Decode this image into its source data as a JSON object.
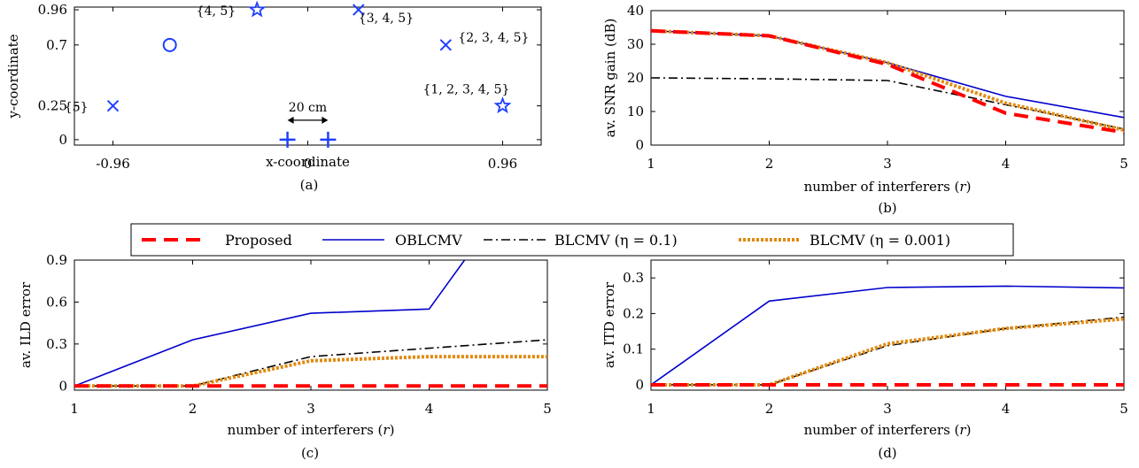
{
  "colors": {
    "proposed": "#ff0000",
    "oblcmv": "#0000cc",
    "blcmv_01": "#000000",
    "blcmv_0001": "#e08a10",
    "marker": "#1f3fff"
  },
  "legend": {
    "items": [
      {
        "key": "proposed",
        "label": "Proposed"
      },
      {
        "key": "oblcmv",
        "label": "OBLCMV"
      },
      {
        "key": "blcmv_01",
        "label": "BLCMV (η = 0.1)"
      },
      {
        "key": "blcmv_0001",
        "label": "BLCMV (η = 0.001)"
      }
    ]
  },
  "chart_data": [
    {
      "id": "a",
      "type": "scatter",
      "caption": "(a)",
      "xlabel": "x-coordinate",
      "ylabel": "y-coordinate",
      "xlim": [
        -1.15,
        1.15
      ],
      "ylim": [
        -0.04,
        0.98
      ],
      "xticks": [
        {
          "v": -0.96,
          "label": "-0.96"
        },
        {
          "v": 0,
          "label": "0"
        },
        {
          "v": 0.96,
          "label": "0.96"
        }
      ],
      "yticks": [
        {
          "v": 0,
          "label": "0"
        },
        {
          "v": 0.25,
          "label": "0.25"
        },
        {
          "v": 0.7,
          "label": "0.7"
        },
        {
          "v": 0.96,
          "label": "0.96"
        }
      ],
      "points": [
        {
          "x": -0.96,
          "y": 0.25,
          "marker": "x",
          "label": "{5}"
        },
        {
          "x": -0.68,
          "y": 0.7,
          "marker": "o",
          "label": ""
        },
        {
          "x": -0.25,
          "y": 0.96,
          "marker": "star",
          "label": "{4, 5}"
        },
        {
          "x": 0.25,
          "y": 0.96,
          "marker": "x",
          "label": "{3, 4, 5}"
        },
        {
          "x": 0.68,
          "y": 0.7,
          "marker": "x",
          "label": "{2, 3, 4, 5}"
        },
        {
          "x": 0.96,
          "y": 0.25,
          "marker": "star",
          "label": "{1, 2, 3, 4, 5}"
        },
        {
          "x": -0.1,
          "y": 0,
          "marker": "plus",
          "label": ""
        },
        {
          "x": 0.1,
          "y": 0,
          "marker": "plus",
          "label": ""
        }
      ],
      "annotation": {
        "text": "20 cm",
        "x1": -0.1,
        "x2": 0.1
      }
    },
    {
      "id": "b",
      "type": "line",
      "caption": "(b)",
      "xlabel": "number of interferers (r)",
      "ylabel": "av. SNR gain (dB)",
      "xlim": [
        1,
        5
      ],
      "ylim": [
        0,
        40
      ],
      "xticks": [
        1,
        2,
        3,
        4,
        5
      ],
      "yticks": [
        0,
        10,
        20,
        30,
        40
      ],
      "x": [
        1,
        2,
        3,
        4,
        5
      ],
      "series": [
        {
          "key": "oblcmv",
          "values": [
            34,
            32.5,
            24.5,
            14.5,
            8.2
          ]
        },
        {
          "key": "blcmv_01",
          "values": [
            20,
            19.7,
            19.2,
            12,
            4.8
          ]
        },
        {
          "key": "blcmv_0001",
          "values": [
            34,
            32.5,
            24.5,
            12.5,
            4.5
          ]
        },
        {
          "key": "proposed",
          "values": [
            34,
            32.5,
            24,
            9.5,
            3.8
          ]
        }
      ]
    },
    {
      "id": "c",
      "type": "line",
      "caption": "(c)",
      "xlabel": "number of interferers (r)",
      "ylabel": "av. ILD error",
      "xlim": [
        1,
        5
      ],
      "ylim": [
        -0.03,
        0.9
      ],
      "xticks": [
        1,
        2,
        3,
        4,
        5
      ],
      "yticks": [
        {
          "v": 0,
          "label": "0"
        },
        {
          "v": 0.3,
          "label": "0.3"
        },
        {
          "v": 0.6,
          "label": "0.6"
        },
        {
          "v": 0.9,
          "label": "0.9"
        }
      ],
      "x": [
        1,
        2,
        3,
        4,
        4.3,
        5
      ],
      "series": [
        {
          "key": "oblcmv",
          "x": [
            1,
            2,
            3,
            4,
            4.3
          ],
          "values": [
            0,
            0.33,
            0.52,
            0.55,
            0.9
          ]
        },
        {
          "key": "blcmv_01",
          "x": [
            1,
            2,
            3,
            4,
            5
          ],
          "values": [
            0,
            0,
            0.21,
            0.27,
            0.33
          ]
        },
        {
          "key": "blcmv_0001",
          "x": [
            1,
            2,
            3,
            4,
            5
          ],
          "values": [
            0,
            0,
            0.18,
            0.21,
            0.21
          ]
        },
        {
          "key": "proposed",
          "x": [
            1,
            2,
            3,
            4,
            5
          ],
          "values": [
            0,
            0,
            0,
            0,
            0
          ]
        }
      ]
    },
    {
      "id": "d",
      "type": "line",
      "caption": "(d)",
      "xlabel": "number of interferers (r)",
      "ylabel": "av. ITD error",
      "xlim": [
        1,
        5
      ],
      "ylim": [
        -0.015,
        0.35
      ],
      "xticks": [
        1,
        2,
        3,
        4,
        5
      ],
      "yticks": [
        {
          "v": 0,
          "label": "0"
        },
        {
          "v": 0.1,
          "label": "0.1"
        },
        {
          "v": 0.2,
          "label": "0.2"
        },
        {
          "v": 0.3,
          "label": "0.3"
        }
      ],
      "x": [
        1,
        2,
        3,
        4,
        5
      ],
      "series": [
        {
          "key": "oblcmv",
          "values": [
            0,
            0.235,
            0.273,
            0.277,
            0.272
          ]
        },
        {
          "key": "blcmv_01",
          "values": [
            0,
            0,
            0.11,
            0.158,
            0.19
          ]
        },
        {
          "key": "blcmv_0001",
          "values": [
            0,
            0,
            0.115,
            0.158,
            0.185
          ]
        },
        {
          "key": "proposed",
          "values": [
            0,
            0,
            0,
            0,
            0
          ]
        }
      ]
    }
  ]
}
